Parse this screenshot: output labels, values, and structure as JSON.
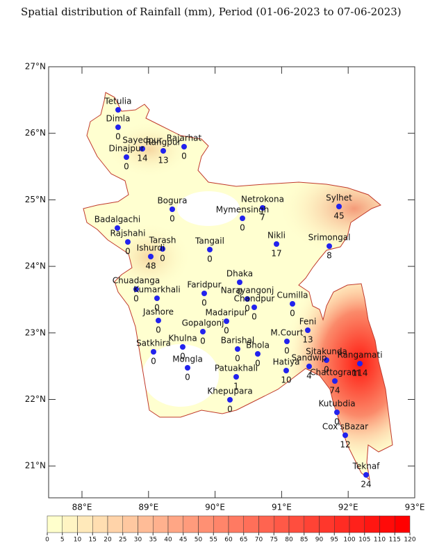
{
  "title": "Spatial distribution of Rainfall (mm), Period (01-06-2023 to 07-06-2023)",
  "map": {
    "lon_ticks": [
      {
        "value": 88,
        "label": "88°E"
      },
      {
        "value": 89,
        "label": "89°E"
      },
      {
        "value": 90,
        "label": "90°E"
      },
      {
        "value": 91,
        "label": "91°E"
      },
      {
        "value": 92,
        "label": "92°E"
      },
      {
        "value": 93,
        "label": "93°E"
      }
    ],
    "lat_ticks": [
      {
        "value": 21,
        "label": "21°N"
      },
      {
        "value": 22,
        "label": "22°N"
      },
      {
        "value": 23,
        "label": "23°N"
      },
      {
        "value": 24,
        "label": "24°N"
      },
      {
        "value": 25,
        "label": "25°N"
      },
      {
        "value": 26,
        "label": "26°N"
      },
      {
        "value": 27,
        "label": "27°N"
      }
    ],
    "stations": [
      {
        "name": "Tetulia",
        "value": null
      },
      {
        "name": "Dimla",
        "value": 0
      },
      {
        "name": "Sayedpur",
        "value": 14
      },
      {
        "name": "Dinajpur",
        "value": 0
      },
      {
        "name": "Rangpur",
        "value": 13
      },
      {
        "name": "Rajarhat",
        "value": 0
      },
      {
        "name": "Bogura",
        "value": 0
      },
      {
        "name": "Badalgachi",
        "value": null
      },
      {
        "name": "Rajshahi",
        "value": 0
      },
      {
        "name": "Tarash",
        "value": 0
      },
      {
        "name": "Ishurdi",
        "value": 48
      },
      {
        "name": "Tangail",
        "value": 0
      },
      {
        "name": "Netrokona",
        "value": 7
      },
      {
        "name": "Mymensingh",
        "value": 0
      },
      {
        "name": "Sylhet",
        "value": 45
      },
      {
        "name": "Nikli",
        "value": 17
      },
      {
        "name": "Srimongal",
        "value": 8
      },
      {
        "name": "Dhaka",
        "value": 0
      },
      {
        "name": "Chuadanga",
        "value": 0
      },
      {
        "name": "Kumarkhali",
        "value": 0
      },
      {
        "name": "Faridpur",
        "value": 0
      },
      {
        "name": "Narayangonj",
        "value": 0
      },
      {
        "name": "Chandpur",
        "value": 0
      },
      {
        "name": "Cumilla",
        "value": 0
      },
      {
        "name": "Jashore",
        "value": 0
      },
      {
        "name": "Madaripur",
        "value": 0
      },
      {
        "name": "Gopalgonj",
        "value": 0
      },
      {
        "name": "Feni",
        "value": 13
      },
      {
        "name": "M.Court",
        "value": 0
      },
      {
        "name": "Satkhira",
        "value": 0
      },
      {
        "name": "Khulna",
        "value": 0
      },
      {
        "name": "Barishal",
        "value": 0
      },
      {
        "name": "Bhola",
        "value": 0
      },
      {
        "name": "Sitakunda",
        "value": 0
      },
      {
        "name": "Sandwip",
        "value": 4
      },
      {
        "name": "Hatiya",
        "value": 10
      },
      {
        "name": "Rangamati",
        "value": 114
      },
      {
        "name": "Chattogram",
        "value": 74
      },
      {
        "name": "Mongla",
        "value": 0
      },
      {
        "name": "Patuakhali",
        "value": 1
      },
      {
        "name": "Khepupara",
        "value": 0
      },
      {
        "name": "Kutubdia",
        "value": 0
      },
      {
        "name": "Cox'sBazar",
        "value": 12
      },
      {
        "name": "Teknaf",
        "value": 24
      }
    ],
    "colorbar": {
      "ticks": [
        0,
        5,
        10,
        15,
        20,
        25,
        30,
        35,
        40,
        45,
        50,
        55,
        60,
        65,
        70,
        75,
        80,
        85,
        90,
        95,
        100,
        105,
        110,
        115,
        120
      ],
      "low_color": "#ffffcc",
      "high_color": "#ff0000"
    }
  }
}
